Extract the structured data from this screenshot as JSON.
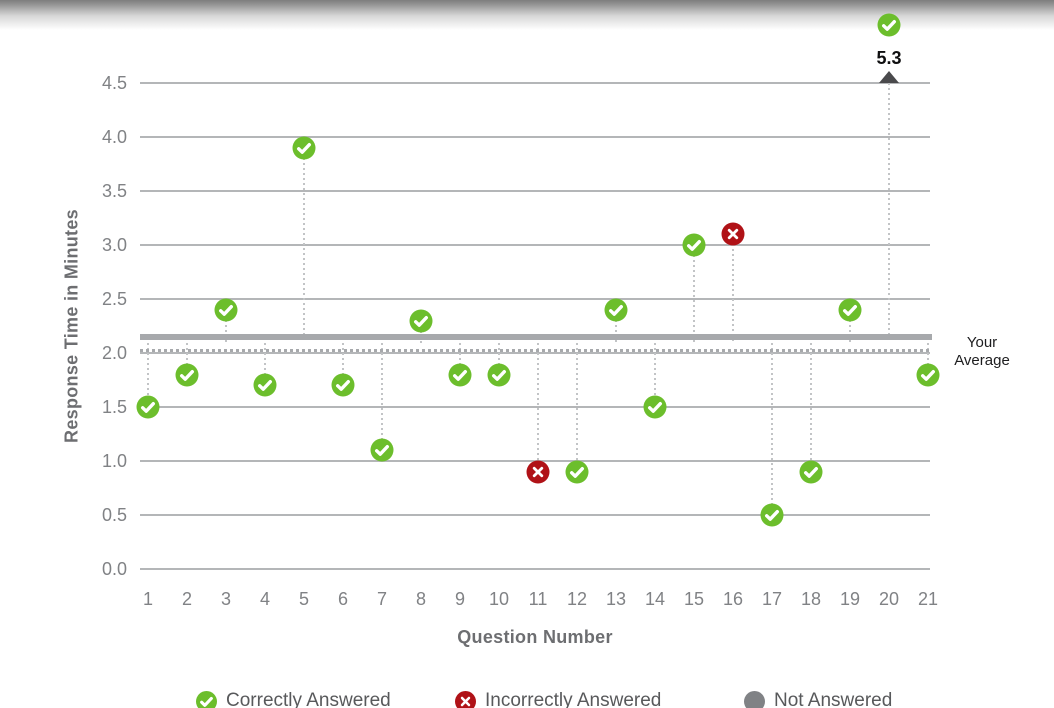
{
  "chart_data": {
    "type": "scatter",
    "title": "",
    "xlabel": "Question Number",
    "ylabel": "Response Time in Minutes",
    "ylim": [
      0,
      4.5
    ],
    "ytick_step": 0.5,
    "grid": true,
    "legend_position": "bottom",
    "points": [
      {
        "q": 1,
        "minutes": 1.5,
        "status": "correct"
      },
      {
        "q": 2,
        "minutes": 1.8,
        "status": "correct"
      },
      {
        "q": 3,
        "minutes": 2.4,
        "status": "correct"
      },
      {
        "q": 4,
        "minutes": 1.7,
        "status": "correct"
      },
      {
        "q": 5,
        "minutes": 3.9,
        "status": "correct"
      },
      {
        "q": 6,
        "minutes": 1.7,
        "status": "correct"
      },
      {
        "q": 7,
        "minutes": 1.1,
        "status": "correct"
      },
      {
        "q": 8,
        "minutes": 2.3,
        "status": "correct"
      },
      {
        "q": 9,
        "minutes": 1.8,
        "status": "correct"
      },
      {
        "q": 10,
        "minutes": 1.8,
        "status": "correct"
      },
      {
        "q": 11,
        "minutes": 0.9,
        "status": "incorrect"
      },
      {
        "q": 12,
        "minutes": 0.9,
        "status": "correct"
      },
      {
        "q": 13,
        "minutes": 2.4,
        "status": "correct"
      },
      {
        "q": 14,
        "minutes": 1.5,
        "status": "correct"
      },
      {
        "q": 15,
        "minutes": 3.0,
        "status": "correct"
      },
      {
        "q": 16,
        "minutes": 3.1,
        "status": "incorrect"
      },
      {
        "q": 17,
        "minutes": 0.5,
        "status": "correct"
      },
      {
        "q": 18,
        "minutes": 0.9,
        "status": "correct"
      },
      {
        "q": 19,
        "minutes": 2.4,
        "status": "correct"
      },
      {
        "q": 20,
        "minutes": 5.3,
        "status": "correct"
      },
      {
        "q": 21,
        "minutes": 1.8,
        "status": "correct"
      }
    ],
    "reference_lines": {
      "label": "Your Average",
      "solid_value": 2.15,
      "dotted_value": 2.03
    },
    "offscale_annotation": {
      "q": 20,
      "label": "5.3"
    },
    "legend": [
      {
        "status": "correct",
        "label": "Correctly Answered"
      },
      {
        "status": "incorrect",
        "label": "Incorrectly Answered"
      },
      {
        "status": "not_answered",
        "label": "Not Answered"
      }
    ]
  },
  "colors": {
    "correct": "#6cbe2c",
    "incorrect": "#b01217",
    "not_answered": "#808285",
    "average_line": "#a7a9ac",
    "grid": "#b4b6b8",
    "stem": "#c2c4c6",
    "arrow": "#4a4a4c"
  }
}
